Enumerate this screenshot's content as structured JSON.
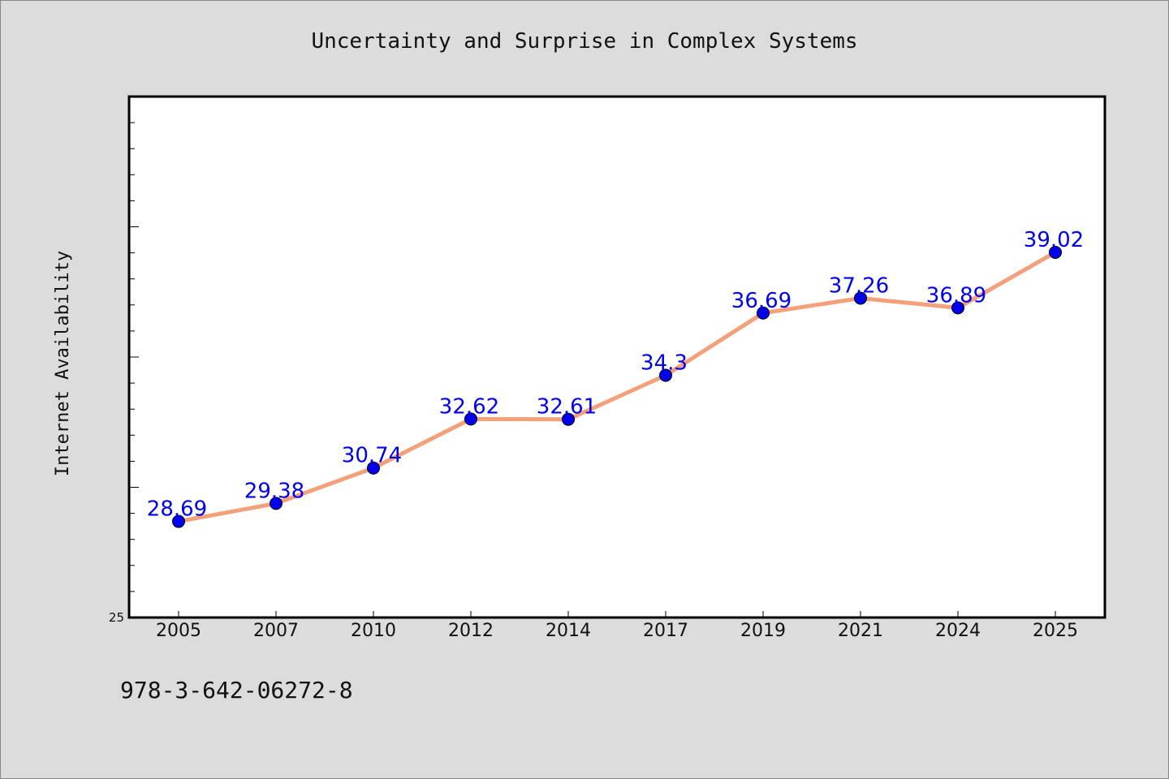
{
  "chart_data": {
    "type": "line",
    "title": "Uncertainty and Surprise in Complex Systems",
    "xlabel": "",
    "ylabel": "Internet Availability",
    "categories": [
      "2005",
      "2007",
      "2010",
      "2012",
      "2014",
      "2017",
      "2019",
      "2021",
      "2024",
      "2025"
    ],
    "series": [
      {
        "values": [
          28.69,
          29.38,
          30.74,
          32.62,
          32.61,
          34.3,
          36.69,
          37.26,
          36.89,
          39.02
        ],
        "data_labels": [
          "28.69",
          "29.38",
          "30.74",
          "32.62",
          "32.61",
          "34.3",
          "36.69",
          "37.26",
          "36.89",
          "39.02"
        ],
        "line_color": "#f4a07a",
        "marker_color": "#0000ee"
      }
    ],
    "ylim": [
      25,
      45
    ],
    "y_tick_labels": [
      "25"
    ],
    "grid": false
  },
  "footer_text": "978-3-642-06272-8"
}
